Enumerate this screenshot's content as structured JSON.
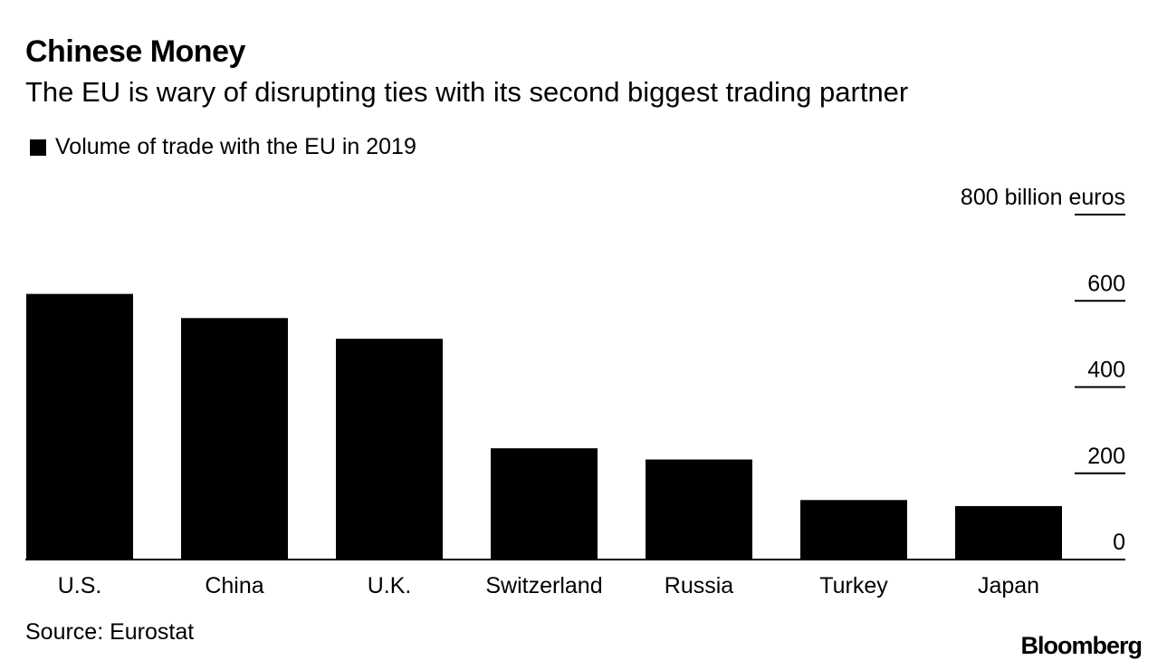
{
  "header": {
    "title": "Chinese Money",
    "subtitle": "The EU is wary of disrupting ties with its second biggest trading partner"
  },
  "legend": {
    "label": "Volume of trade with the EU in 2019"
  },
  "footer": {
    "source": "Source: Eurostat",
    "brand": "Bloomberg"
  },
  "colors": {
    "bar": "#000000",
    "background": "#ffffff",
    "axis": "#000000"
  },
  "chart_data": {
    "type": "bar",
    "title": "Chinese Money",
    "subtitle": "The EU is wary of disrupting ties with its second biggest trading partner",
    "series_name": "Volume of trade with the EU in 2019",
    "categories": [
      "U.S.",
      "China",
      "U.K.",
      "Switzerland",
      "Russia",
      "Turkey",
      "Japan"
    ],
    "values": [
      616,
      560,
      512,
      258,
      232,
      138,
      124
    ],
    "unit": "billion euros",
    "ylim": [
      0,
      800
    ],
    "yticks": [
      0,
      200,
      400,
      600,
      800
    ],
    "ytick_labels": [
      "0",
      "200",
      "400",
      "600",
      "800 billion euros"
    ],
    "yaxis_position": "right",
    "grid": false,
    "legend_position": "top-left"
  }
}
